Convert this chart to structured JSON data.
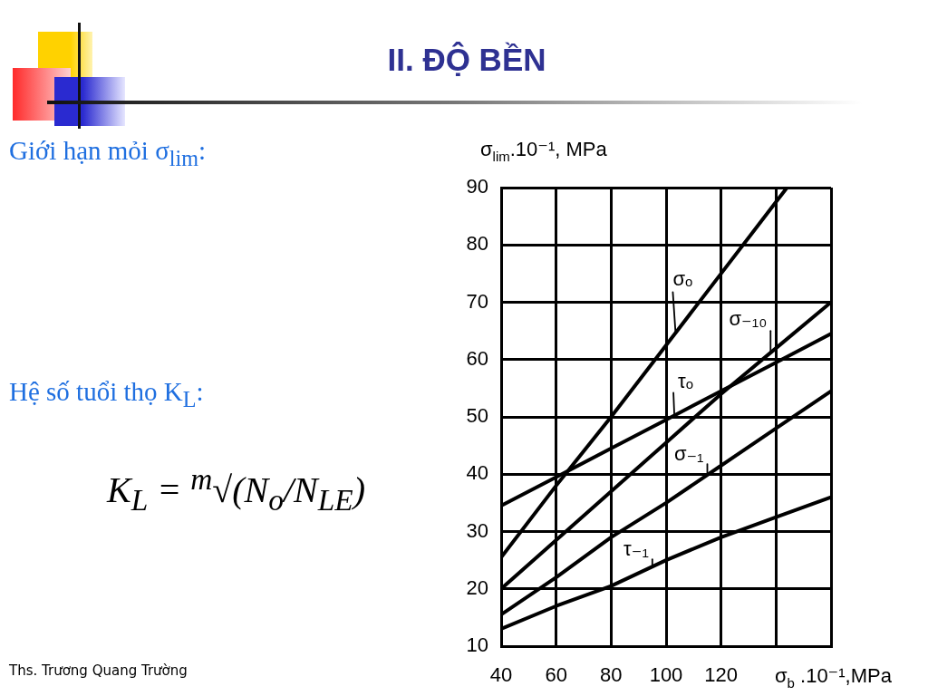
{
  "chart_data": {
    "type": "line",
    "title": "II. ĐỘ BỀN",
    "xlabel": "σ$_{b}$ .10⁻¹,MPa",
    "ylabel": "σ$_{lim}$.10⁻¹, MPa",
    "x": [
      40,
      60,
      80,
      100,
      120,
      140,
      160
    ],
    "series": [
      {
        "name": "σₒ",
        "color": "#000000",
        "x": [
          40,
          60,
          80,
          100,
          120,
          140,
          144
        ],
        "values": [
          25.5,
          38,
          50,
          62.5,
          75,
          87.5,
          90
        ]
      },
      {
        "name": "τₒ",
        "color": "#000000",
        "values": [
          34.5,
          39.5,
          44.5,
          49.5,
          54.5,
          59.5,
          64.5
        ]
      },
      {
        "name": "σ₋₁₀",
        "color": "#000000",
        "values": [
          20,
          28.5,
          37,
          45.5,
          54,
          62,
          70
        ]
      },
      {
        "name": "σ₋₁",
        "color": "#000000",
        "values": [
          15.5,
          22,
          29,
          35,
          41.5,
          48,
          54.5
        ]
      },
      {
        "name": "τ₋₁",
        "color": "#000000",
        "values": [
          13,
          17,
          20.5,
          25,
          29,
          32.5,
          36
        ]
      }
    ],
    "xlim": [
      40,
      160
    ],
    "ylim": [
      10,
      90
    ],
    "xticks": [
      40,
      60,
      80,
      100,
      120,
      {
        "value": 140,
        "label": null
      },
      {
        "value": 160,
        "label": null
      }
    ],
    "yticks": [
      10,
      20,
      30,
      40,
      50,
      60,
      70,
      80,
      90
    ],
    "grid": true,
    "legend": false,
    "annotations": [
      "Giới hạn mỏi σ$_{lim}$:",
      "Hệ số tuổi thọ K$_{L}$:",
      "K$_{L}$ = $^{m}$√(N$_{o}$/N$_{LE}$)",
      "Ths. Trương Quang Trường"
    ]
  }
}
